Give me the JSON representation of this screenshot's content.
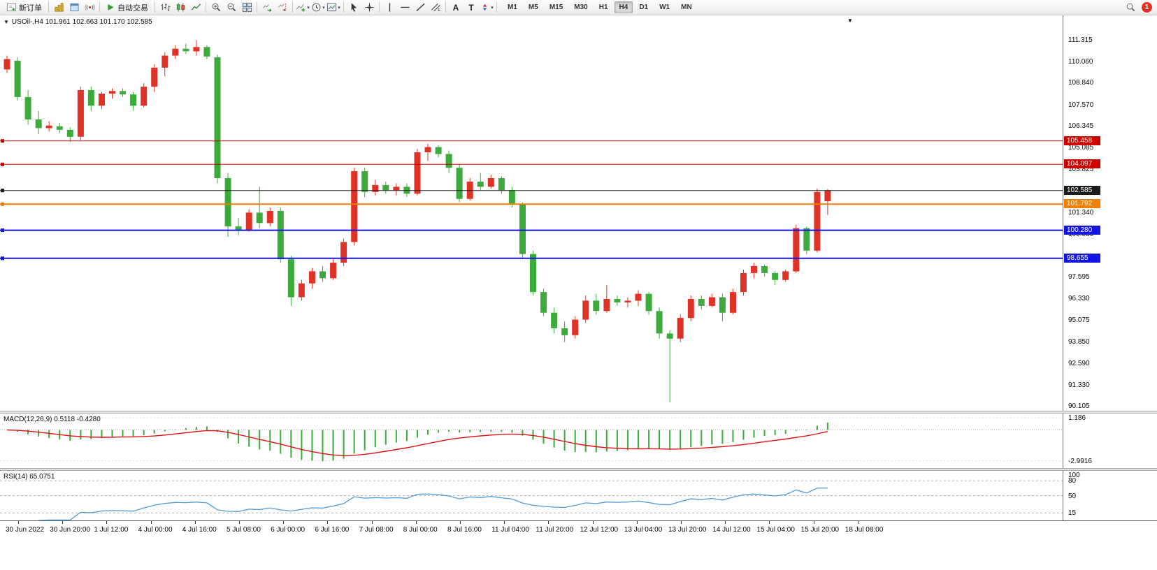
{
  "toolbar": {
    "new_order": "新订单",
    "autotrading": "自动交易",
    "text_tool": "A",
    "label_tool": "T",
    "timeframes": [
      "M1",
      "M5",
      "M15",
      "M30",
      "H1",
      "H4",
      "D1",
      "W1",
      "MN"
    ],
    "active_timeframe": "H4",
    "notification_count": "1"
  },
  "icons": {
    "caret": "▾",
    "chart_menu": "▼",
    "shift_marker": "▼"
  },
  "chart_data": {
    "type": "candlestick",
    "symbol": "USOil-",
    "timeframe": "H4",
    "symbol_title": "USOil-,H4  101.961 102.663 101.170 102.585",
    "colors": {
      "up": "#e03328",
      "down": "#3cab3c",
      "macd_hist": "#3cab3c",
      "macd_signal": "#dd1111",
      "rsi": "#4f9bd5"
    },
    "y_range": [
      90.105,
      111.315
    ],
    "price_axis_labels": [
      "111.315",
      "110.060",
      "108.840",
      "107.570",
      "106.345",
      "105.085",
      "103.825",
      "101.340",
      "100.080",
      "97.595",
      "96.330",
      "95.075",
      "93.850",
      "92.590",
      "91.330",
      "90.105"
    ],
    "time_labels": [
      "30 Jun 2022",
      "30 Jun 20:00",
      "1 Jul 12:00",
      "4 Jul 00:00",
      "4 Jul 16:00",
      "5 Jul 08:00",
      "6 Jul 00:00",
      "6 Jul 16:00",
      "7 Jul 08:00",
      "8 Jul 00:00",
      "8 Jul 16:00",
      "11 Jul 04:00",
      "11 Jul 20:00",
      "12 Jul 12:00",
      "13 Jul 04:00",
      "13 Jul 20:00",
      "14 Jul 12:00",
      "15 Jul 04:00",
      "15 Jul 20:00",
      "18 Jul 08:00"
    ],
    "hlines": [
      {
        "price": 105.458,
        "label": "105.458",
        "color": "#d10000",
        "width": 1
      },
      {
        "price": 104.097,
        "label": "104.097",
        "color": "#d10000",
        "width": 1
      },
      {
        "price": 102.585,
        "label": "102.585",
        "color": "#1c1c1c",
        "width": 1
      },
      {
        "price": 101.792,
        "label": "101.792",
        "color": "#f08000",
        "width": 2
      },
      {
        "price": 100.28,
        "label": "100.280",
        "color": "#1414e0",
        "width": 2
      },
      {
        "price": 98.655,
        "label": "98.655",
        "color": "#1414e0",
        "width": 2
      }
    ],
    "ohlc": [
      [
        109.6,
        110.4,
        109.4,
        110.2
      ],
      [
        110.1,
        110.3,
        107.8,
        108.0
      ],
      [
        108.0,
        108.4,
        106.4,
        106.7
      ],
      [
        106.7,
        107.2,
        105.85,
        106.2
      ],
      [
        106.2,
        106.6,
        106.0,
        106.35
      ],
      [
        106.3,
        106.5,
        105.9,
        106.1
      ],
      [
        106.1,
        106.25,
        105.4,
        105.7
      ],
      [
        105.7,
        108.6,
        105.5,
        108.4
      ],
      [
        108.4,
        108.6,
        107.2,
        107.5
      ],
      [
        107.5,
        108.3,
        107.3,
        108.2
      ],
      [
        108.2,
        108.5,
        107.9,
        108.35
      ],
      [
        108.35,
        108.5,
        108.0,
        108.15
      ],
      [
        108.15,
        108.3,
        107.2,
        107.5
      ],
      [
        107.5,
        108.8,
        107.4,
        108.6
      ],
      [
        108.6,
        109.9,
        108.3,
        109.7
      ],
      [
        109.7,
        110.6,
        109.2,
        110.4
      ],
      [
        110.4,
        111.0,
        110.2,
        110.8
      ],
      [
        110.8,
        111.1,
        110.5,
        110.65
      ],
      [
        110.65,
        111.3,
        110.4,
        110.9
      ],
      [
        110.9,
        111.0,
        110.2,
        110.35
      ],
      [
        110.3,
        110.45,
        103.0,
        103.3
      ],
      [
        103.3,
        103.6,
        99.9,
        100.5
      ],
      [
        100.5,
        101.0,
        100.0,
        100.3
      ],
      [
        100.3,
        101.5,
        100.2,
        101.3
      ],
      [
        101.3,
        102.8,
        100.4,
        100.7
      ],
      [
        100.7,
        101.6,
        100.5,
        101.4
      ],
      [
        101.4,
        101.6,
        98.4,
        98.6
      ],
      [
        98.6,
        98.8,
        95.9,
        96.4
      ],
      [
        96.4,
        97.4,
        96.2,
        97.2
      ],
      [
        97.2,
        98.1,
        96.9,
        97.9
      ],
      [
        97.9,
        98.2,
        97.3,
        97.5
      ],
      [
        97.5,
        98.6,
        97.4,
        98.4
      ],
      [
        98.4,
        99.8,
        98.2,
        99.6
      ],
      [
        99.6,
        103.9,
        99.4,
        103.7
      ],
      [
        103.7,
        103.9,
        102.2,
        102.5
      ],
      [
        102.5,
        103.2,
        102.3,
        102.9
      ],
      [
        102.9,
        103.1,
        102.4,
        102.6
      ],
      [
        102.6,
        103.0,
        102.3,
        102.8
      ],
      [
        102.8,
        103.0,
        102.2,
        102.4
      ],
      [
        102.4,
        105.0,
        102.3,
        104.8
      ],
      [
        104.8,
        105.3,
        104.3,
        105.1
      ],
      [
        105.1,
        105.2,
        104.5,
        104.7
      ],
      [
        104.7,
        104.9,
        103.6,
        103.9
      ],
      [
        103.9,
        104.1,
        101.9,
        102.1
      ],
      [
        102.1,
        103.3,
        102.0,
        103.1
      ],
      [
        103.1,
        103.6,
        102.6,
        102.8
      ],
      [
        102.8,
        103.5,
        102.7,
        103.3
      ],
      [
        103.3,
        103.4,
        102.4,
        102.6
      ],
      [
        102.6,
        102.8,
        101.6,
        101.8
      ],
      [
        101.8,
        101.9,
        98.6,
        98.9
      ],
      [
        98.9,
        99.1,
        96.5,
        96.7
      ],
      [
        96.7,
        96.9,
        95.3,
        95.5
      ],
      [
        95.5,
        95.8,
        94.3,
        94.6
      ],
      [
        94.6,
        95.0,
        93.8,
        94.2
      ],
      [
        94.2,
        95.3,
        94.0,
        95.1
      ],
      [
        95.1,
        96.5,
        94.9,
        96.2
      ],
      [
        96.2,
        96.6,
        95.4,
        95.6
      ],
      [
        95.6,
        97.1,
        95.5,
        96.3
      ],
      [
        96.3,
        96.5,
        95.9,
        96.1
      ],
      [
        96.1,
        96.4,
        95.8,
        96.2
      ],
      [
        96.2,
        96.8,
        95.9,
        96.6
      ],
      [
        96.6,
        96.7,
        95.4,
        95.6
      ],
      [
        95.6,
        95.8,
        94.0,
        94.3
      ],
      [
        94.3,
        94.5,
        90.3,
        94.0
      ],
      [
        94.0,
        95.4,
        93.8,
        95.2
      ],
      [
        95.2,
        96.5,
        95.0,
        96.3
      ],
      [
        96.3,
        96.5,
        95.7,
        95.9
      ],
      [
        95.9,
        96.6,
        95.8,
        96.4
      ],
      [
        96.4,
        96.6,
        95.0,
        95.5
      ],
      [
        95.5,
        96.9,
        95.4,
        96.7
      ],
      [
        96.7,
        98.0,
        96.5,
        97.8
      ],
      [
        97.8,
        98.4,
        97.5,
        98.2
      ],
      [
        98.2,
        98.3,
        97.6,
        97.8
      ],
      [
        97.8,
        97.9,
        97.1,
        97.4
      ],
      [
        97.4,
        98.0,
        97.3,
        97.9
      ],
      [
        97.9,
        100.6,
        97.8,
        100.4
      ],
      [
        100.4,
        100.5,
        98.9,
        99.1
      ],
      [
        99.1,
        102.7,
        99.0,
        102.5
      ],
      [
        101.961,
        102.663,
        101.17,
        102.585
      ]
    ],
    "indicators": {
      "macd": {
        "label": "MACD(12,26,9) 0.5118 -0.4280",
        "params": [
          12,
          26,
          9
        ],
        "values_text": [
          "0.5118",
          "-0.4280"
        ],
        "axis_labels": [
          "1.186",
          "-2.9916"
        ],
        "range": [
          -3.7,
          1.6
        ]
      },
      "rsi": {
        "label": "RSI(14) 65.0751",
        "period": 14,
        "value_text": "65.0751",
        "axis_labels": [
          "100",
          "80",
          "50",
          "15"
        ],
        "levels": [
          80,
          50,
          15
        ],
        "range": [
          0,
          100
        ]
      }
    }
  }
}
